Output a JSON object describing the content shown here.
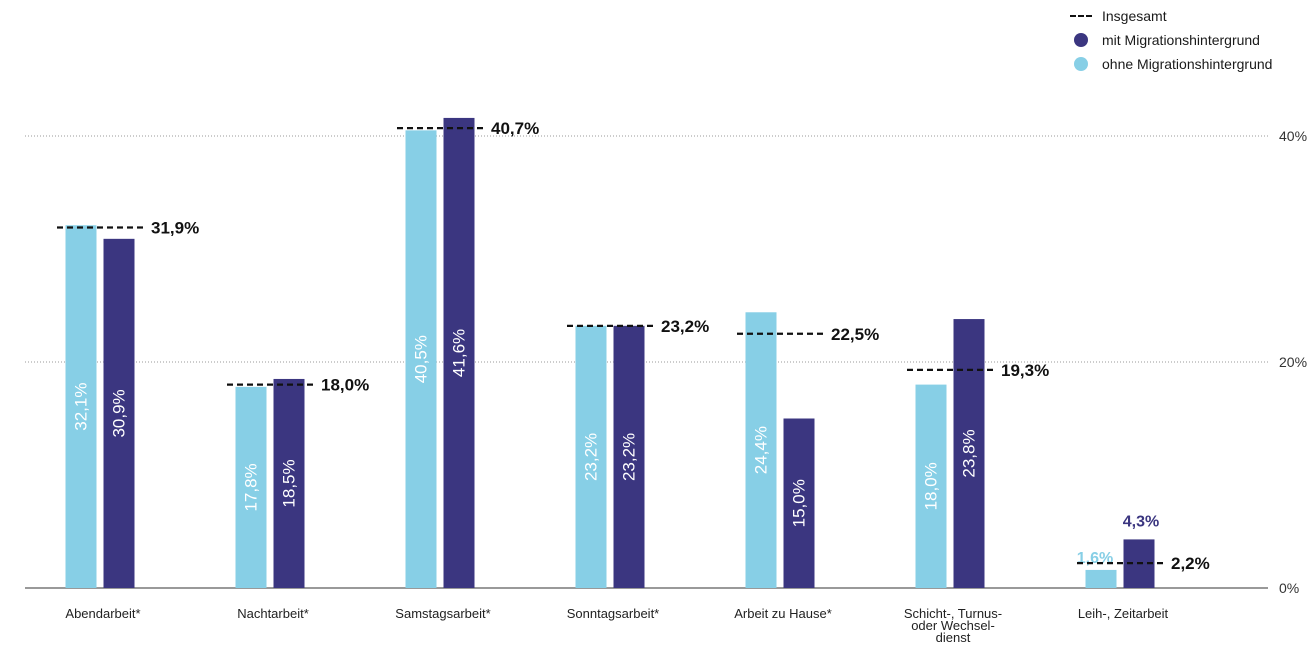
{
  "legend": {
    "total_label": "Insgesamt",
    "with_label": "mit Migrationshintergrund",
    "without_label": "ohne Migrationshintergrund"
  },
  "colors": {
    "with": "#3b3680",
    "without": "#87cfe6",
    "total": "#111111",
    "grid": "#9a9a9a"
  },
  "chart_data": {
    "type": "bar",
    "categories": [
      [
        "Abendarbeit*"
      ],
      [
        "Nachtarbeit*"
      ],
      [
        "Samstagsarbeit*"
      ],
      [
        "Sonntagsarbeit*"
      ],
      [
        "Arbeit zu Hause*"
      ],
      [
        "Schicht-, Turnus-",
        "oder Wechsel-",
        "dienst"
      ],
      [
        "Leih-, Zeitarbeit"
      ]
    ],
    "series": [
      {
        "name": "ohne Migrationshintergrund",
        "values": [
          32.1,
          17.8,
          40.5,
          23.2,
          24.4,
          18.0,
          1.6
        ],
        "labels": [
          "32,1%",
          "17,8%",
          "40,5%",
          "23,2%",
          "24,4%",
          "18,0%",
          "1,6%"
        ]
      },
      {
        "name": "mit Migrationshintergrund",
        "values": [
          30.9,
          18.5,
          41.6,
          23.2,
          15.0,
          23.8,
          4.3
        ],
        "labels": [
          "30,9%",
          "18,5%",
          "41,6%",
          "23,2%",
          "15,0%",
          "23,8%",
          "4,3%"
        ]
      },
      {
        "name": "Insgesamt",
        "values": [
          31.9,
          18.0,
          40.7,
          23.2,
          22.5,
          19.3,
          2.2
        ],
        "labels": [
          "31,9%",
          "18,0%",
          "40,7%",
          "23,2%",
          "22,5%",
          "19,3%",
          "2,2%"
        ]
      }
    ],
    "yticks": [
      0,
      20,
      40
    ],
    "ytick_labels": [
      "0%",
      "20%",
      "40%"
    ],
    "ylim": [
      0,
      44
    ],
    "grid": true,
    "legend_position": "top-right"
  }
}
